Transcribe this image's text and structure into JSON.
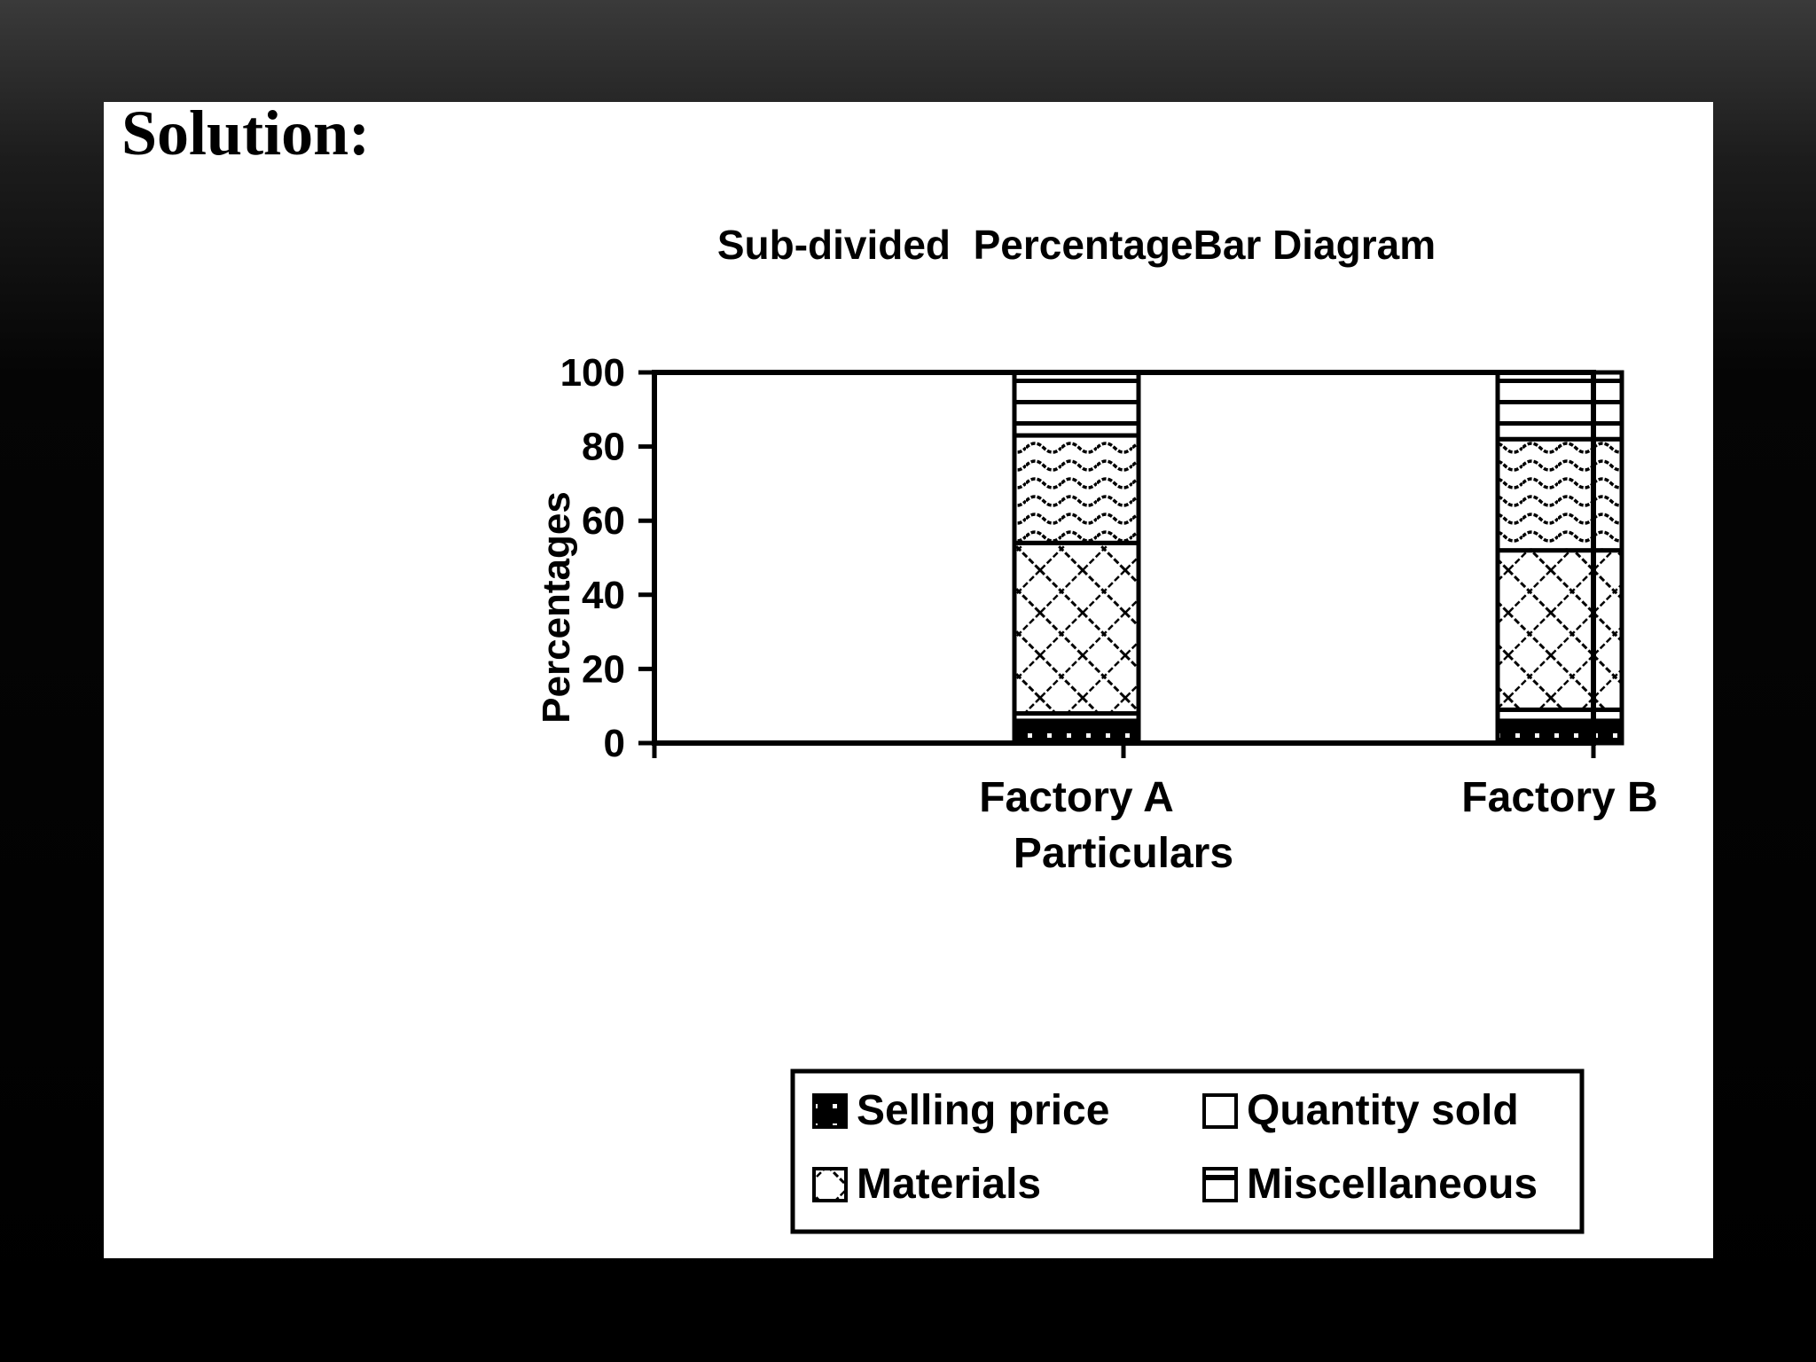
{
  "slide": {
    "heading": "Solution:"
  },
  "chart_data": {
    "type": "bar",
    "stacked": true,
    "title": "Sub-divided  PercentageBar Diagram",
    "xlabel": "Particulars",
    "ylabel": "Percentages",
    "ylim": [
      0,
      100
    ],
    "yticks": [
      "0",
      "20",
      "40",
      "60",
      "80",
      "100"
    ],
    "categories": [
      "Factory A",
      "Factory B"
    ],
    "series": [
      {
        "name": "Selling price",
        "values": [
          6,
          6
        ],
        "pattern": "dotted-black"
      },
      {
        "name": "Quantity sold",
        "values": [
          2,
          3
        ],
        "pattern": "white"
      },
      {
        "name": "Materials",
        "values": [
          46,
          43
        ],
        "pattern": "diagonal-cross"
      },
      {
        "name": "Miscellaneous",
        "values": [
          29,
          30
        ],
        "pattern": "wave"
      },
      {
        "name": "",
        "values": [
          17,
          18
        ],
        "pattern": "horizontal-lines"
      }
    ],
    "legend": {
      "position": "bottom",
      "entries": [
        "Selling price",
        "Quantity sold",
        "Materials",
        "Miscellaneous"
      ]
    },
    "grid": false
  }
}
